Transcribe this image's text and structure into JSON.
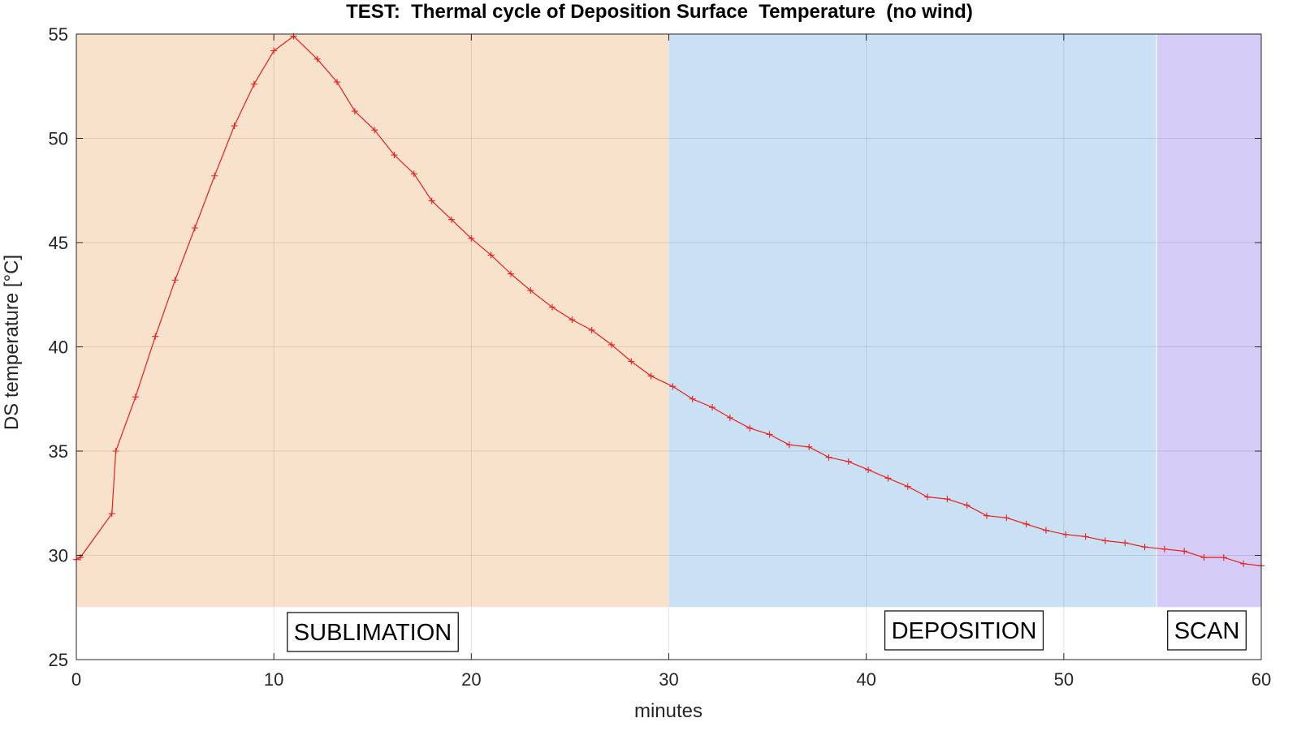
{
  "chart_data": {
    "type": "line",
    "title": "TEST:  Thermal cycle of Deposition Surface  Temperature  (no wind)",
    "xlabel": "minutes",
    "ylabel": "DS temperature [°C]",
    "xlim": [
      0,
      60
    ],
    "ylim": [
      25,
      55
    ],
    "xticks": [
      0,
      10,
      20,
      30,
      40,
      50,
      60
    ],
    "yticks": [
      25,
      30,
      35,
      40,
      45,
      50,
      55
    ],
    "grid": true,
    "regions": [
      {
        "label": "SUBLIMATION",
        "x_start": 0,
        "x_end": 30,
        "y_start": 27.5,
        "y_end": 55,
        "color": "#f9e2cc"
      },
      {
        "label": "DEPOSITION",
        "x_start": 30,
        "x_end": 54.7,
        "y_start": 27.5,
        "y_end": 55,
        "color": "#cae0f5"
      },
      {
        "label": "SCAN",
        "x_start": 54.7,
        "x_end": 60,
        "y_start": 27.5,
        "y_end": 55,
        "color": "#d5ccf8"
      }
    ],
    "series": [
      {
        "color": "#e5201f",
        "marker": "+",
        "x": [
          0,
          0.2,
          1.8,
          2,
          3,
          4,
          5,
          6,
          7,
          8,
          9,
          10,
          11,
          12.2,
          13.2,
          14.1,
          15.1,
          16.1,
          17.1,
          18,
          19,
          20,
          21,
          22,
          23,
          24.1,
          25.1,
          26.1,
          27.1,
          28.1,
          29.1,
          30.2,
          31.2,
          32.2,
          33.1,
          34.1,
          35.1,
          36.1,
          37.1,
          38.1,
          39.1,
          40.1,
          41.1,
          42.1,
          43.1,
          44.1,
          45.1,
          46.1,
          47.1,
          48.1,
          49.1,
          50.1,
          51.1,
          52.1,
          53.1,
          54.1,
          55.1,
          56.1,
          57.1,
          58.1,
          59.1,
          60
        ],
        "y": [
          29.8,
          29.9,
          32.0,
          35.0,
          37.6,
          40.5,
          43.2,
          45.7,
          48.2,
          50.6,
          52.6,
          54.2,
          54.9,
          53.8,
          52.7,
          51.3,
          50.4,
          49.2,
          48.3,
          47.0,
          46.1,
          45.2,
          44.4,
          43.5,
          42.7,
          41.9,
          41.3,
          40.8,
          40.1,
          39.3,
          38.6,
          38.1,
          37.5,
          37.1,
          36.6,
          36.1,
          35.8,
          35.3,
          35.2,
          34.7,
          34.5,
          34.1,
          33.7,
          33.3,
          32.8,
          32.7,
          32.4,
          31.9,
          31.8,
          31.5,
          31.2,
          31.0,
          30.9,
          30.7,
          30.6,
          30.4,
          30.3,
          30.2,
          29.9,
          29.9,
          29.6,
          29.5
        ]
      }
    ]
  }
}
